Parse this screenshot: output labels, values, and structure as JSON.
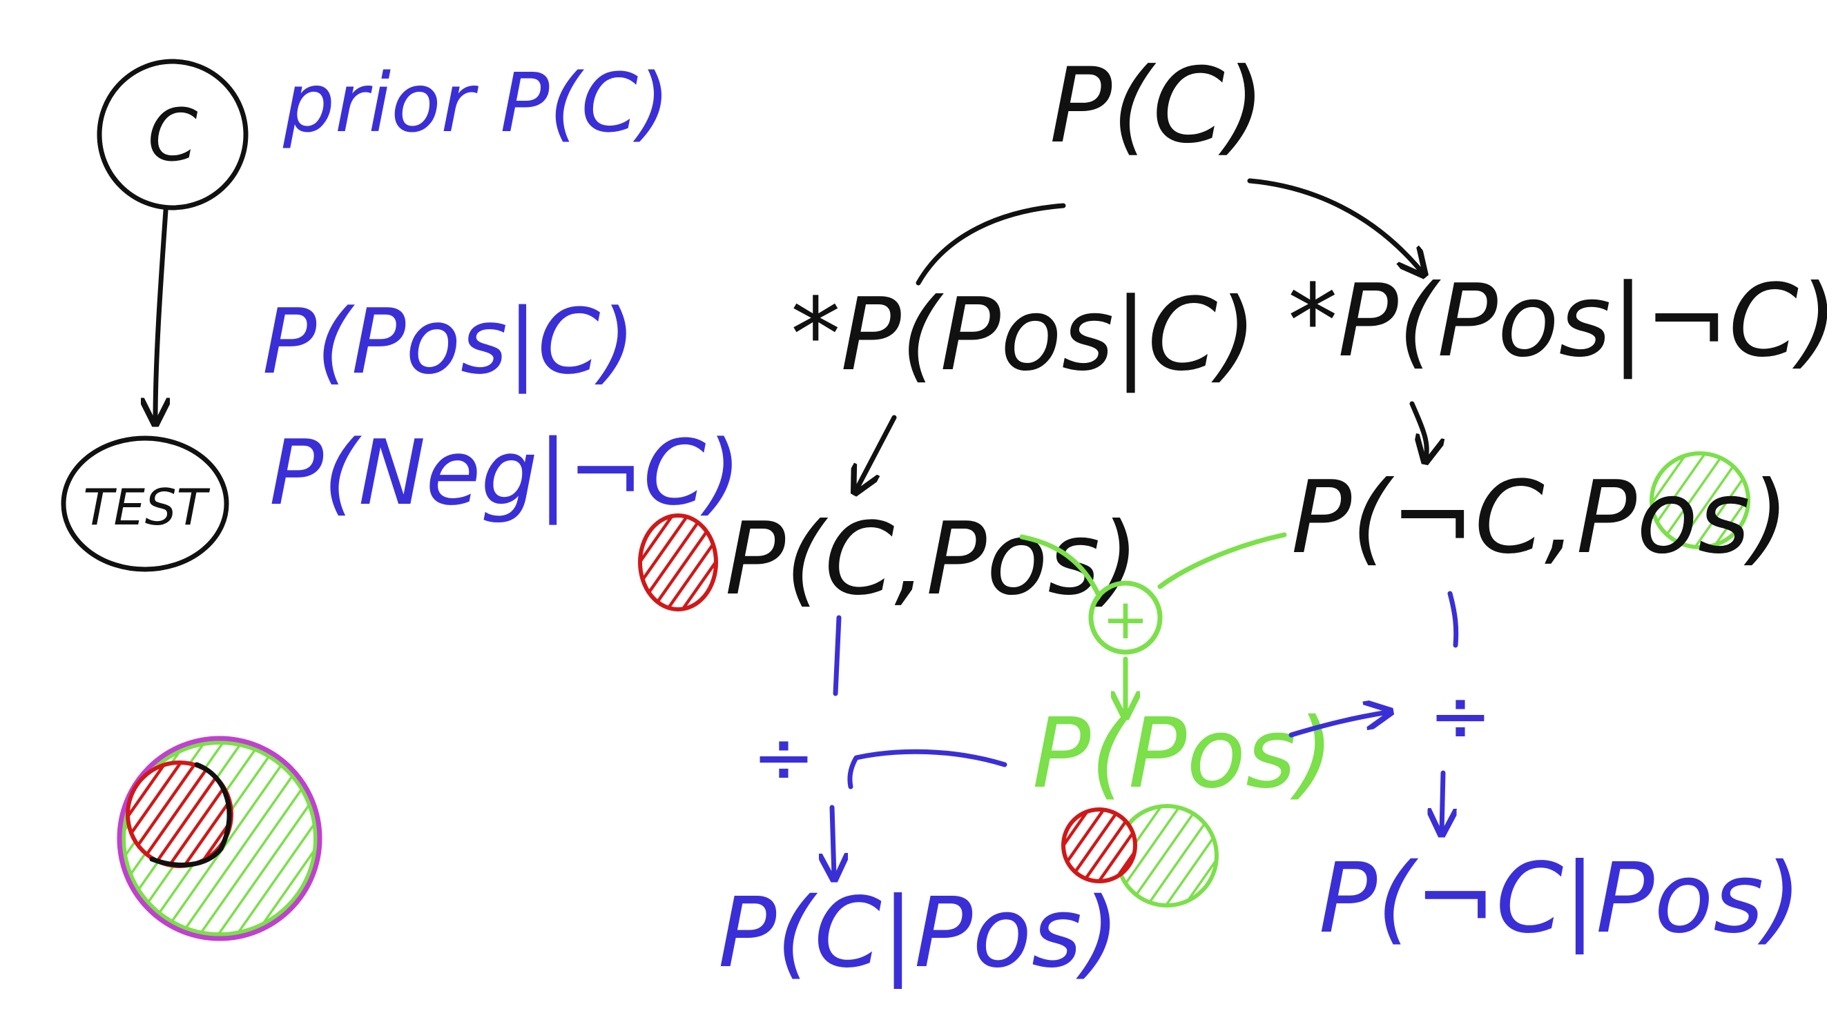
{
  "node_c": "C",
  "node_test": "TEST",
  "prior_label": "prior P(C)",
  "cpt_pos_given_c": "P(Pos|C)",
  "cpt_neg_given_not_c": "P(Neg|¬C)",
  "tree": {
    "root": "P(C)",
    "left_mult": "*P(Pos|C)",
    "right_mult": "*P(Pos|¬C)",
    "joint_left": "P(C,Pos)",
    "joint_right": "P(¬C,Pos)",
    "plus": "+",
    "sum": "P(Pos)",
    "divide_left": "÷",
    "divide_right": "÷",
    "posterior_left": "P(C|Pos)",
    "posterior_right": "P(¬C|Pos)"
  },
  "colors": {
    "black": "#111111",
    "blue": "#3a2fd6",
    "green": "#7be04a",
    "red": "#d01818",
    "magenta": "#c040d0"
  }
}
